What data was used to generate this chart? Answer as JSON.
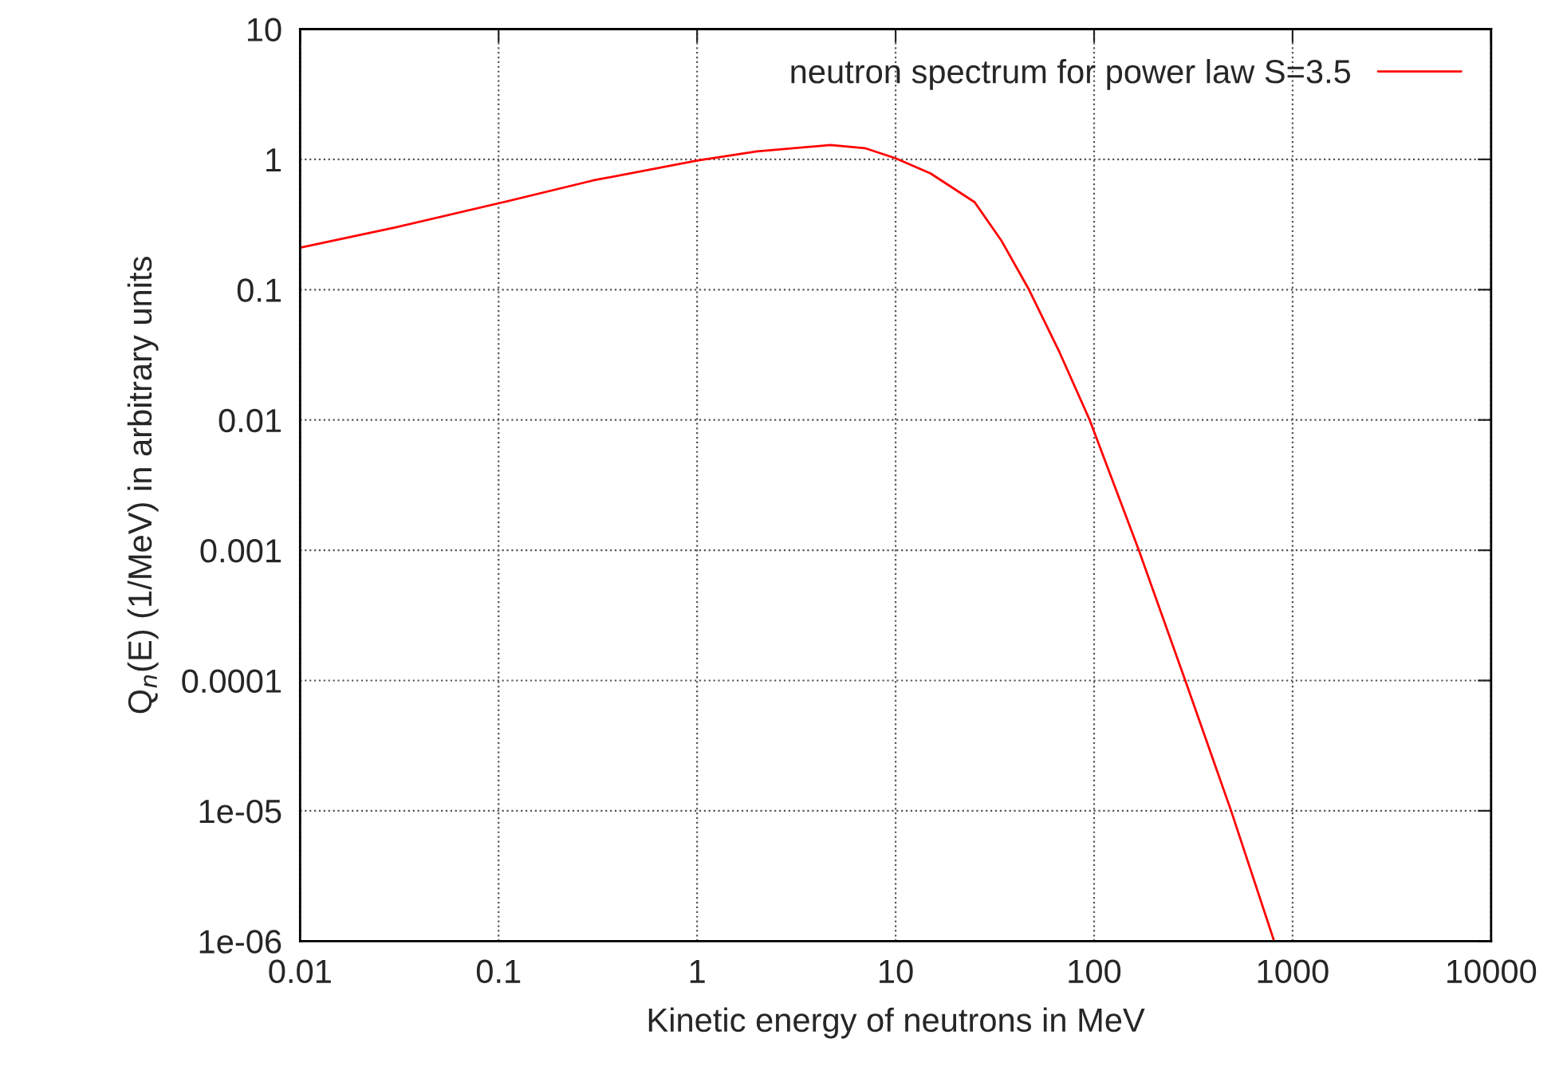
{
  "chart_data": {
    "type": "line",
    "xlabel": "Kinetic energy of neutrons in MeV",
    "ylabel": "Q$_{n}$(E) (1/MeV) in arbitrary units",
    "log": "xy",
    "xlim": [
      0.01,
      10000
    ],
    "ylim": [
      1e-06,
      10
    ],
    "xticks": [
      0.01,
      0.1,
      1,
      10,
      100,
      1000,
      10000
    ],
    "yticks": [
      1e-06,
      1e-05,
      0.0001,
      0.001,
      0.01,
      0.1,
      1,
      10
    ],
    "grid": true,
    "legend": "top right",
    "line_style": "solid",
    "marker": "none",
    "series": [
      {
        "name": "neutron spectrum for power law S=3.5",
        "color": "#ff0000",
        "x": [
          0.01,
          0.03,
          0.1,
          0.3,
          1,
          2,
          4.7,
          7,
          10,
          15,
          25,
          34,
          47,
          67,
          95,
          168,
          288,
          490,
          807
        ],
        "values": [
          0.21,
          0.3,
          0.46,
          0.69,
          0.98,
          1.15,
          1.29,
          1.22,
          1.02,
          0.78,
          0.47,
          0.24,
          0.1,
          0.033,
          0.01,
          0.001,
          0.0001,
          1e-05,
          1e-06
        ]
      }
    ]
  }
}
